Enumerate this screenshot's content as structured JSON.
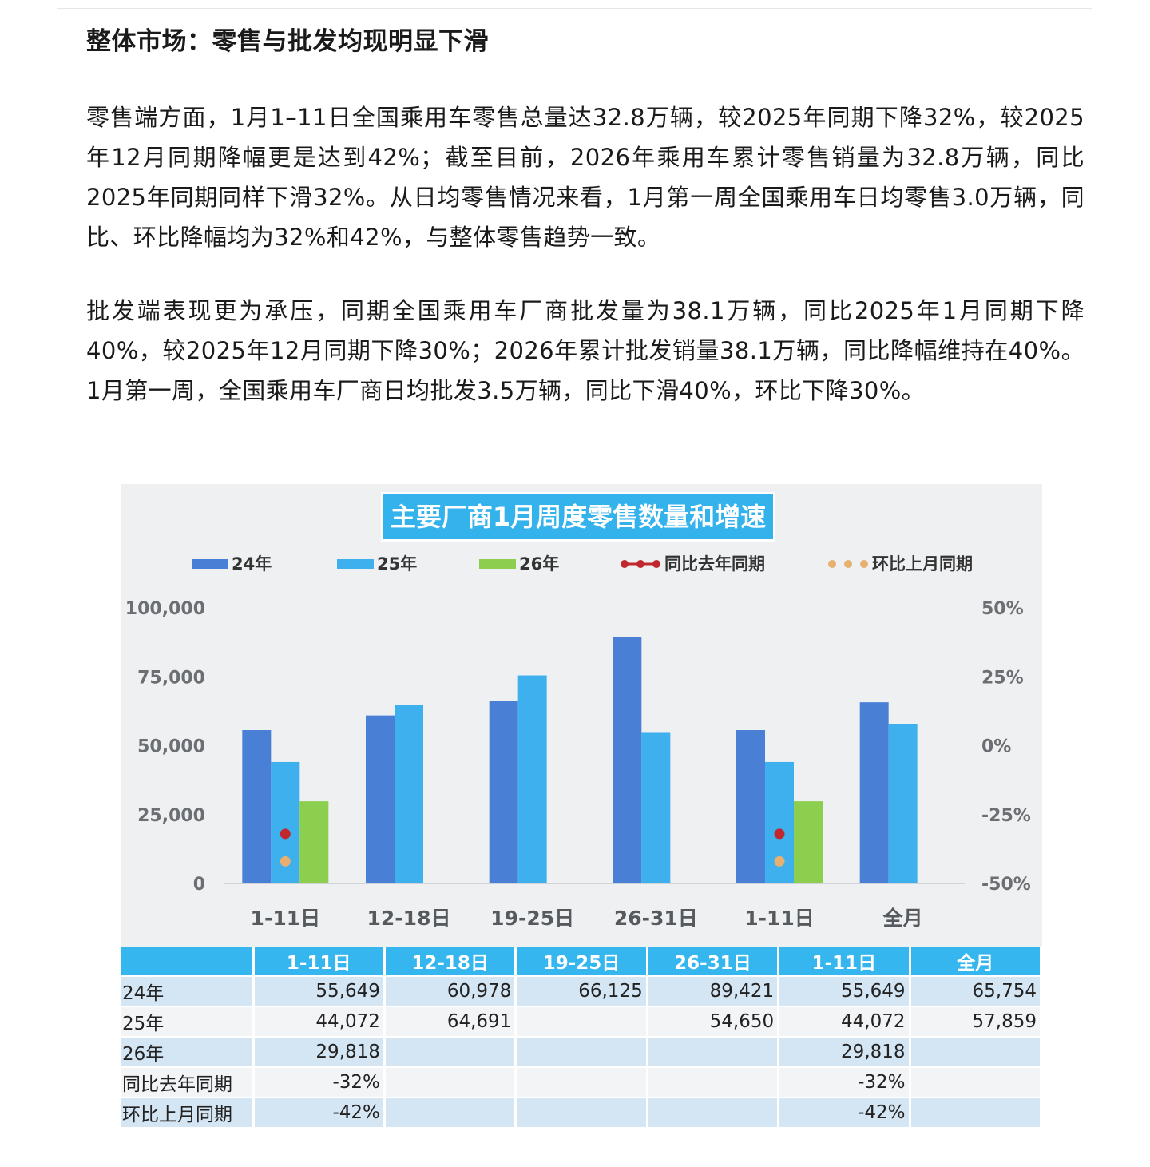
{
  "article": {
    "heading": "整体市场：零售与批发均现明显下滑",
    "paragraphs": [
      "零售端方面，1月1–11日全国乘用车零售总量达32.8万辆，较2025年同期下降32%，较2025年12月同期降幅更是达到42%；截至目前，2026年乘用车累计零售销量为32.8万辆，同比2025年同期同样下滑32%。从日均零售情况来看，1月第一周全国乘用车日均零售3.0万辆，同比、环比降幅均为32%和42%，与整体零售趋势一致。",
      "批发端表现更为承压，同期全国乘用车厂商批发量为38.1万辆，同比2025年1月同期下降40%，较2025年12月同期下降30%；2026年累计批发销量38.1万辆，同比降幅维持在40%。1月第一周，全国乘用车厂商日均批发3.5万辆，同比下滑40%，环比下降30%。"
    ]
  },
  "chart_data": {
    "type": "bar",
    "title": "主要厂商1月周度零售数量和增速",
    "categories": [
      "1-11日",
      "12-18日",
      "19-25日",
      "26-31日",
      "1-11日",
      "全月"
    ],
    "series": [
      {
        "name": "24年",
        "kind": "bar",
        "color": "#4a7fd6",
        "values": [
          55649,
          60978,
          66125,
          89421,
          55649,
          65754
        ]
      },
      {
        "name": "25年",
        "kind": "bar",
        "color": "#3fb0ee",
        "values": [
          44072,
          64691,
          75500,
          54650,
          44072,
          57859
        ]
      },
      {
        "name": "26年",
        "kind": "bar",
        "color": "#8ccf4f",
        "values": [
          29818,
          null,
          null,
          null,
          29818,
          null
        ]
      },
      {
        "name": "同比去年同期",
        "kind": "line",
        "axis": "right",
        "color": "#c0282d",
        "values": [
          -32,
          null,
          null,
          null,
          -32,
          null
        ]
      },
      {
        "name": "环比上月同期",
        "kind": "line",
        "axis": "right",
        "color": "#e8b070",
        "values": [
          -42,
          null,
          null,
          null,
          -42,
          null
        ]
      }
    ],
    "left_axis": {
      "ylim": [
        0,
        100000
      ],
      "ticks": [
        "100,000",
        "75,000",
        "50,000",
        "25,000",
        "0"
      ]
    },
    "right_axis": {
      "ylim": [
        -50,
        50
      ],
      "ticks": [
        "50%",
        "25%",
        "0%",
        "-25%",
        "-50%"
      ]
    },
    "legend": {
      "placement": "top"
    },
    "grid": false,
    "table": {
      "header_labels": [
        "1-11日",
        "12-18日",
        "19-25日",
        "26-31日",
        "1-11日",
        "全月"
      ],
      "rows": [
        {
          "label": "24年",
          "cells": [
            "55,649",
            "60,978",
            "66,125",
            "89,421",
            "55,649",
            "65,754"
          ]
        },
        {
          "label": "25年",
          "cells": [
            "44,072",
            "64,691",
            "",
            "54,650",
            "44,072",
            "57,859"
          ]
        },
        {
          "label": "26年",
          "cells": [
            "29,818",
            "",
            "",
            "",
            "29,818",
            ""
          ]
        },
        {
          "label": "同比去年同期",
          "cells": [
            "-32%",
            "",
            "",
            "",
            "-32%",
            ""
          ]
        },
        {
          "label": "环比上月同期",
          "cells": [
            "-42%",
            "",
            "",
            "",
            "-42%",
            ""
          ]
        }
      ]
    }
  }
}
